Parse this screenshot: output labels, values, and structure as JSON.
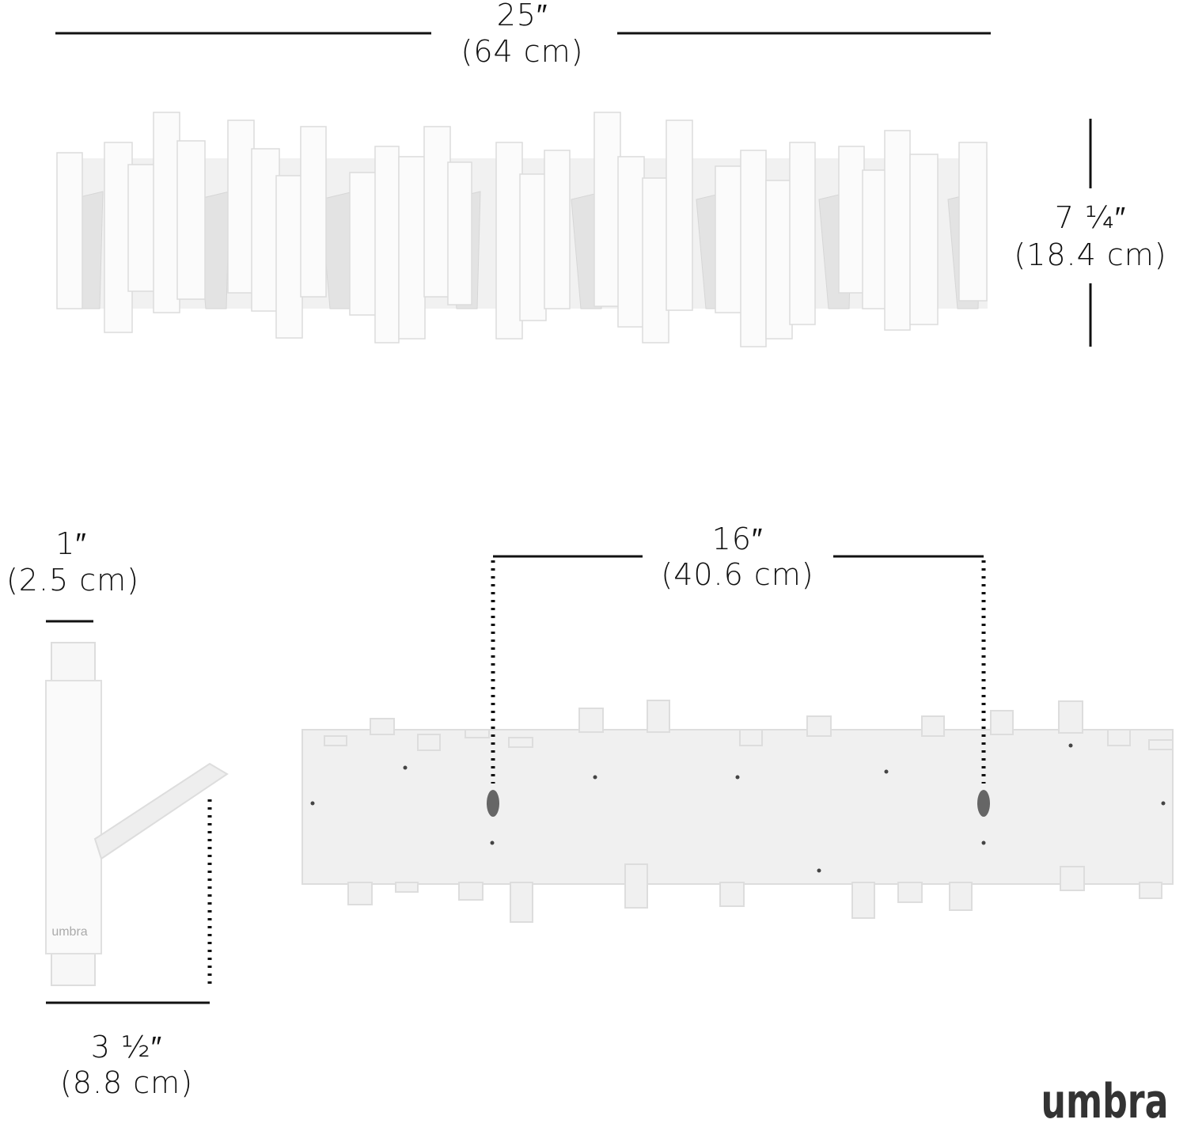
{
  "dimensions": {
    "width": {
      "imperial": "25″",
      "metric": "(64 cm)"
    },
    "height": {
      "imperial": "7 ¼″",
      "metric": "(18.4 cm)"
    },
    "depth": {
      "imperial": "1″",
      "metric": "(2.5 cm)"
    },
    "projection": {
      "imperial": "3 ½″",
      "metric": "(8.8 cm)"
    },
    "mount_spacing": {
      "imperial": "16″",
      "metric": "(40.6 cm)"
    }
  },
  "side_view_logo": "umbra",
  "brand": "umbra"
}
